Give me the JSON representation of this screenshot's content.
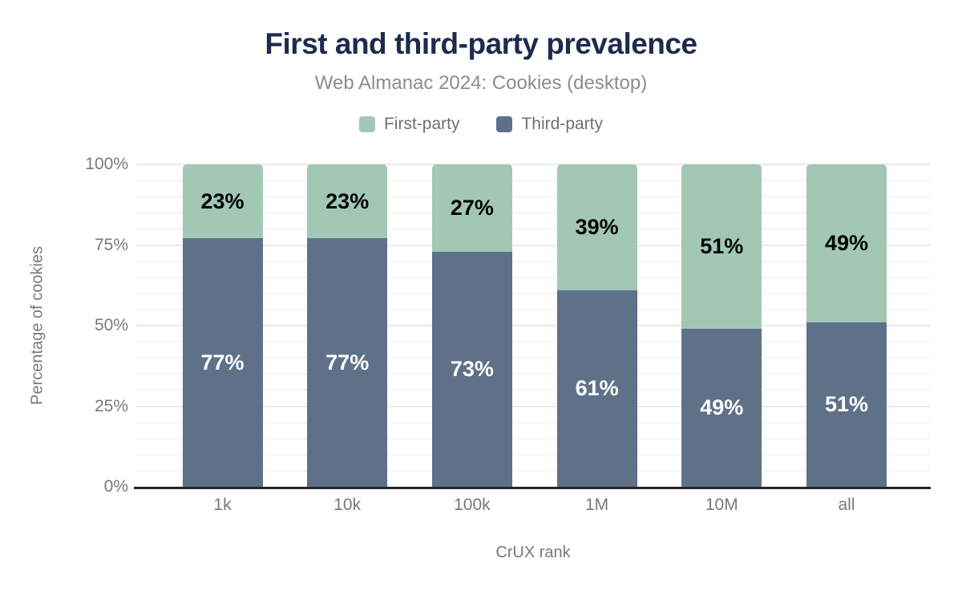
{
  "title": "First and third-party prevalence",
  "subtitle": "Web Almanac 2024: Cookies (desktop)",
  "legend": {
    "items": [
      {
        "label": "First-party",
        "color": "#a2c8b5"
      },
      {
        "label": "Third-party",
        "color": "#5f7189"
      }
    ]
  },
  "chart_data": {
    "type": "bar",
    "stacked": true,
    "title": "First and third-party prevalence",
    "subtitle": "Web Almanac 2024: Cookies (desktop)",
    "categories": [
      "1k",
      "10k",
      "100k",
      "1M",
      "10M",
      "all"
    ],
    "series": [
      {
        "name": "First-party",
        "color": "#a2c8b5",
        "label_color": "#000000",
        "values": [
          23,
          23,
          27,
          39,
          51,
          49
        ],
        "labels": [
          "23%",
          "23%",
          "27%",
          "39%",
          "51%",
          "49%"
        ]
      },
      {
        "name": "Third-party",
        "color": "#5f7189",
        "label_color": "#ffffff",
        "values": [
          77,
          77,
          73,
          61,
          49,
          51
        ],
        "labels": [
          "77%",
          "77%",
          "73%",
          "61%",
          "49%",
          "51%"
        ]
      }
    ],
    "xlabel": "CrUX rank",
    "ylabel": "Percentage of cookies",
    "ylim": [
      0,
      100
    ],
    "yticks": [
      {
        "value": 0,
        "label": "0%"
      },
      {
        "value": 25,
        "label": "25%"
      },
      {
        "value": 50,
        "label": "50%"
      },
      {
        "value": 75,
        "label": "75%"
      },
      {
        "value": 100,
        "label": "100%"
      }
    ],
    "grid": {
      "minor_step": 5,
      "major_step": 25,
      "visible": true
    },
    "legend_position": "top"
  }
}
